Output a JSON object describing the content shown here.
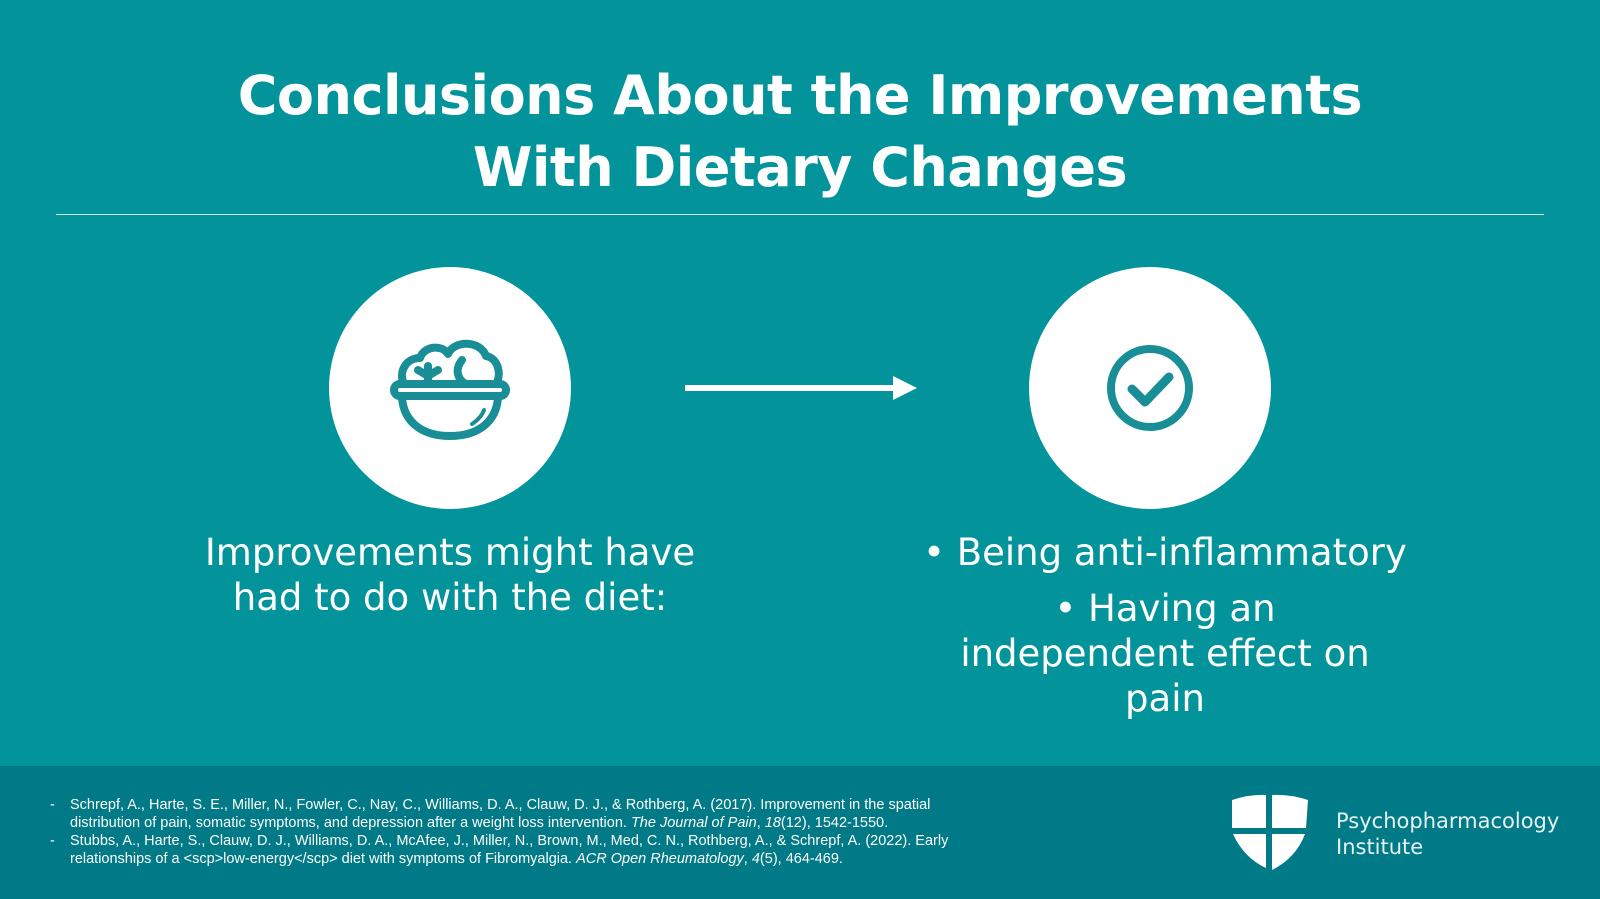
{
  "title_line1": "Conclusions About the Improvements",
  "title_line2": "With Dietary Changes",
  "left_text_line1": "Improvements might have",
  "left_text_line2": "had to do with the diet:",
  "bullets": [
    "Being anti-inflammatory",
    "Having an independent effect on pain"
  ],
  "references": [
    {
      "pre": "Schrepf, A., Harte, S. E., Miller, N., Fowler, C., Nay, C., Williams, D. A., Clauw, D. J., & Rothberg, A. (2017). Improvement in the spatial distribution of pain, somatic symptoms, and depression after a weight loss intervention. ",
      "journal": "The Journal of Pain",
      "sep": ", ",
      "vol": "18",
      "post": "(12), 1542-1550."
    },
    {
      "pre": "Stubbs, A., Harte, S., Clauw, D. J., Williams, D. A., McAfee, J., Miller, N., Brown, M., Med, C. N., Rothberg, A., & Schrepf, A. (2022). Early relationships of a <scp>low-energy</scp> diet with symptoms of Fibromyalgia. ",
      "journal": "ACR Open Rheumatology",
      "sep": ", ",
      "vol": "4",
      "post": "(5), 464-469."
    }
  ],
  "logo": {
    "line1": "Psychopharmacology",
    "line2": "Institute"
  },
  "colors": {
    "background": "#03939b",
    "footer": "#007a87",
    "icon": "#1a8e96"
  }
}
